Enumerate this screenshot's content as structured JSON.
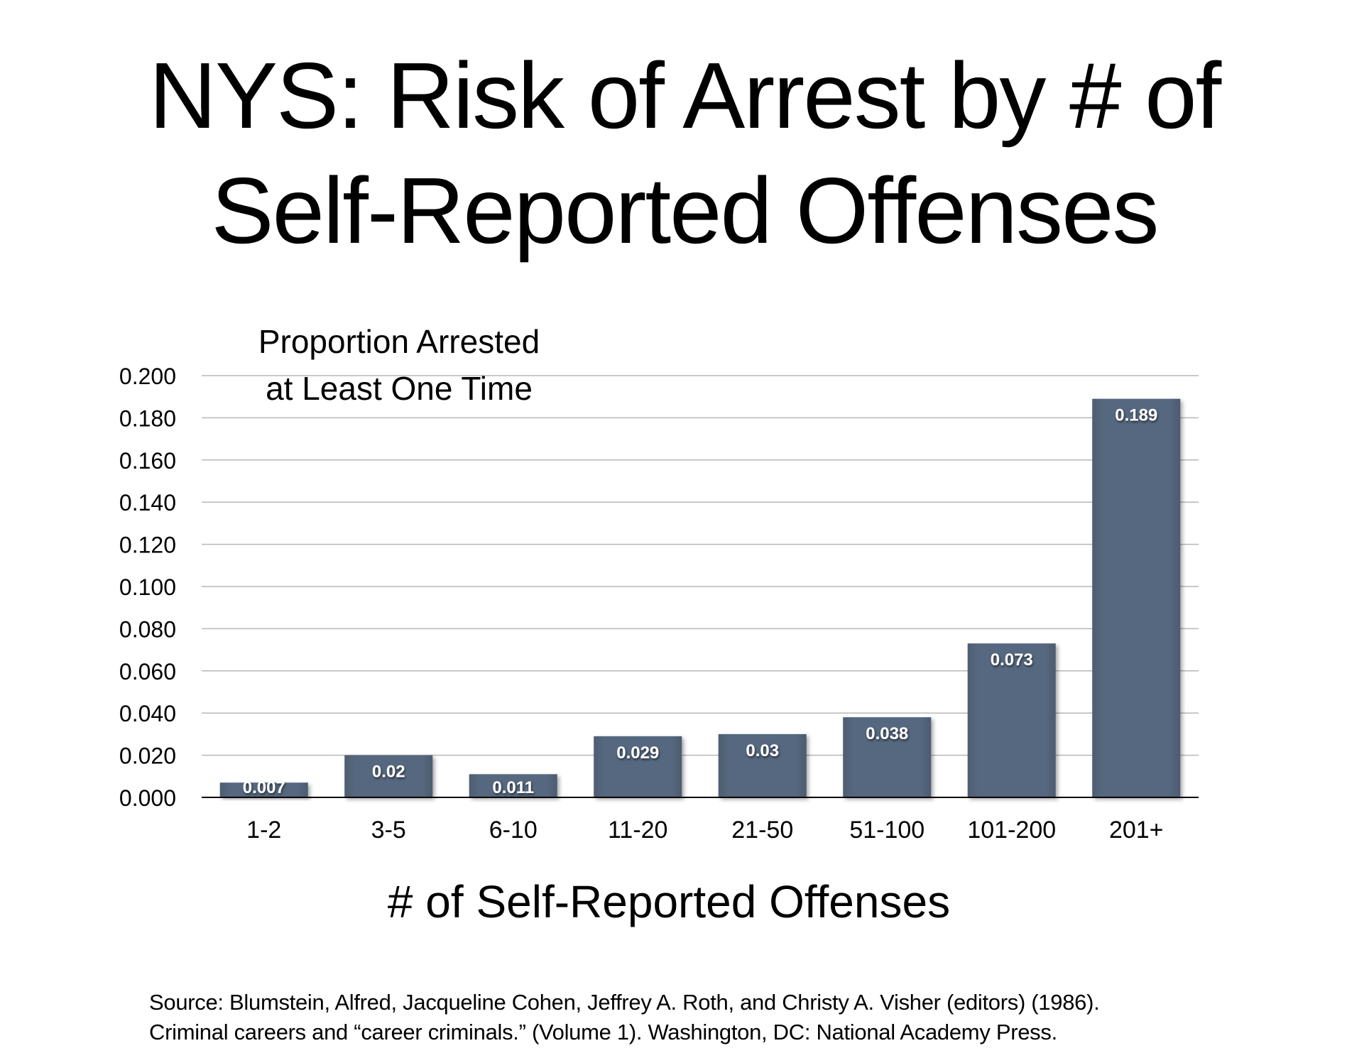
{
  "slide": {
    "title_line1": "NYS: Risk of Arrest by # of",
    "title_line2": "Self-Reported Offenses",
    "source_line1": "Source: Blumstein, Alfred, Jacqueline Cohen, Jeffrey A. Roth, and Christy A. Visher (editors) (1986).",
    "source_line2": "Criminal careers and “career criminals.” (Volume 1). Washington, DC: National Academy Press."
  },
  "chart_data": {
    "type": "bar",
    "title": "",
    "ylabel_line1": "Proportion Arrested",
    "ylabel_line2": "at Least One Time",
    "xlabel": "# of Self-Reported Offenses",
    "categories": [
      "1-2",
      "3-5",
      "6-10",
      "11-20",
      "21-50",
      "51-100",
      "101-200",
      "201+"
    ],
    "values": [
      0.007,
      0.02,
      0.011,
      0.029,
      0.03,
      0.038,
      0.073,
      0.189
    ],
    "value_labels": [
      "0.007",
      "0.02",
      "0.011",
      "0.029",
      "0.03",
      "0.038",
      "0.073",
      "0.189"
    ],
    "ylim": [
      0,
      0.2
    ],
    "yticks": [
      0,
      0.02,
      0.04,
      0.06,
      0.08,
      0.1,
      0.12,
      0.14,
      0.16,
      0.18,
      0.2
    ],
    "ytick_labels": [
      "0.000",
      "0.020",
      "0.040",
      "0.060",
      "0.080",
      "0.100",
      "0.120",
      "0.140",
      "0.160",
      "0.180",
      "0.200"
    ],
    "grid": true,
    "bar_color": "#56677f",
    "gridline_color": "#b7b7b7",
    "label_color": "#ffffff"
  }
}
